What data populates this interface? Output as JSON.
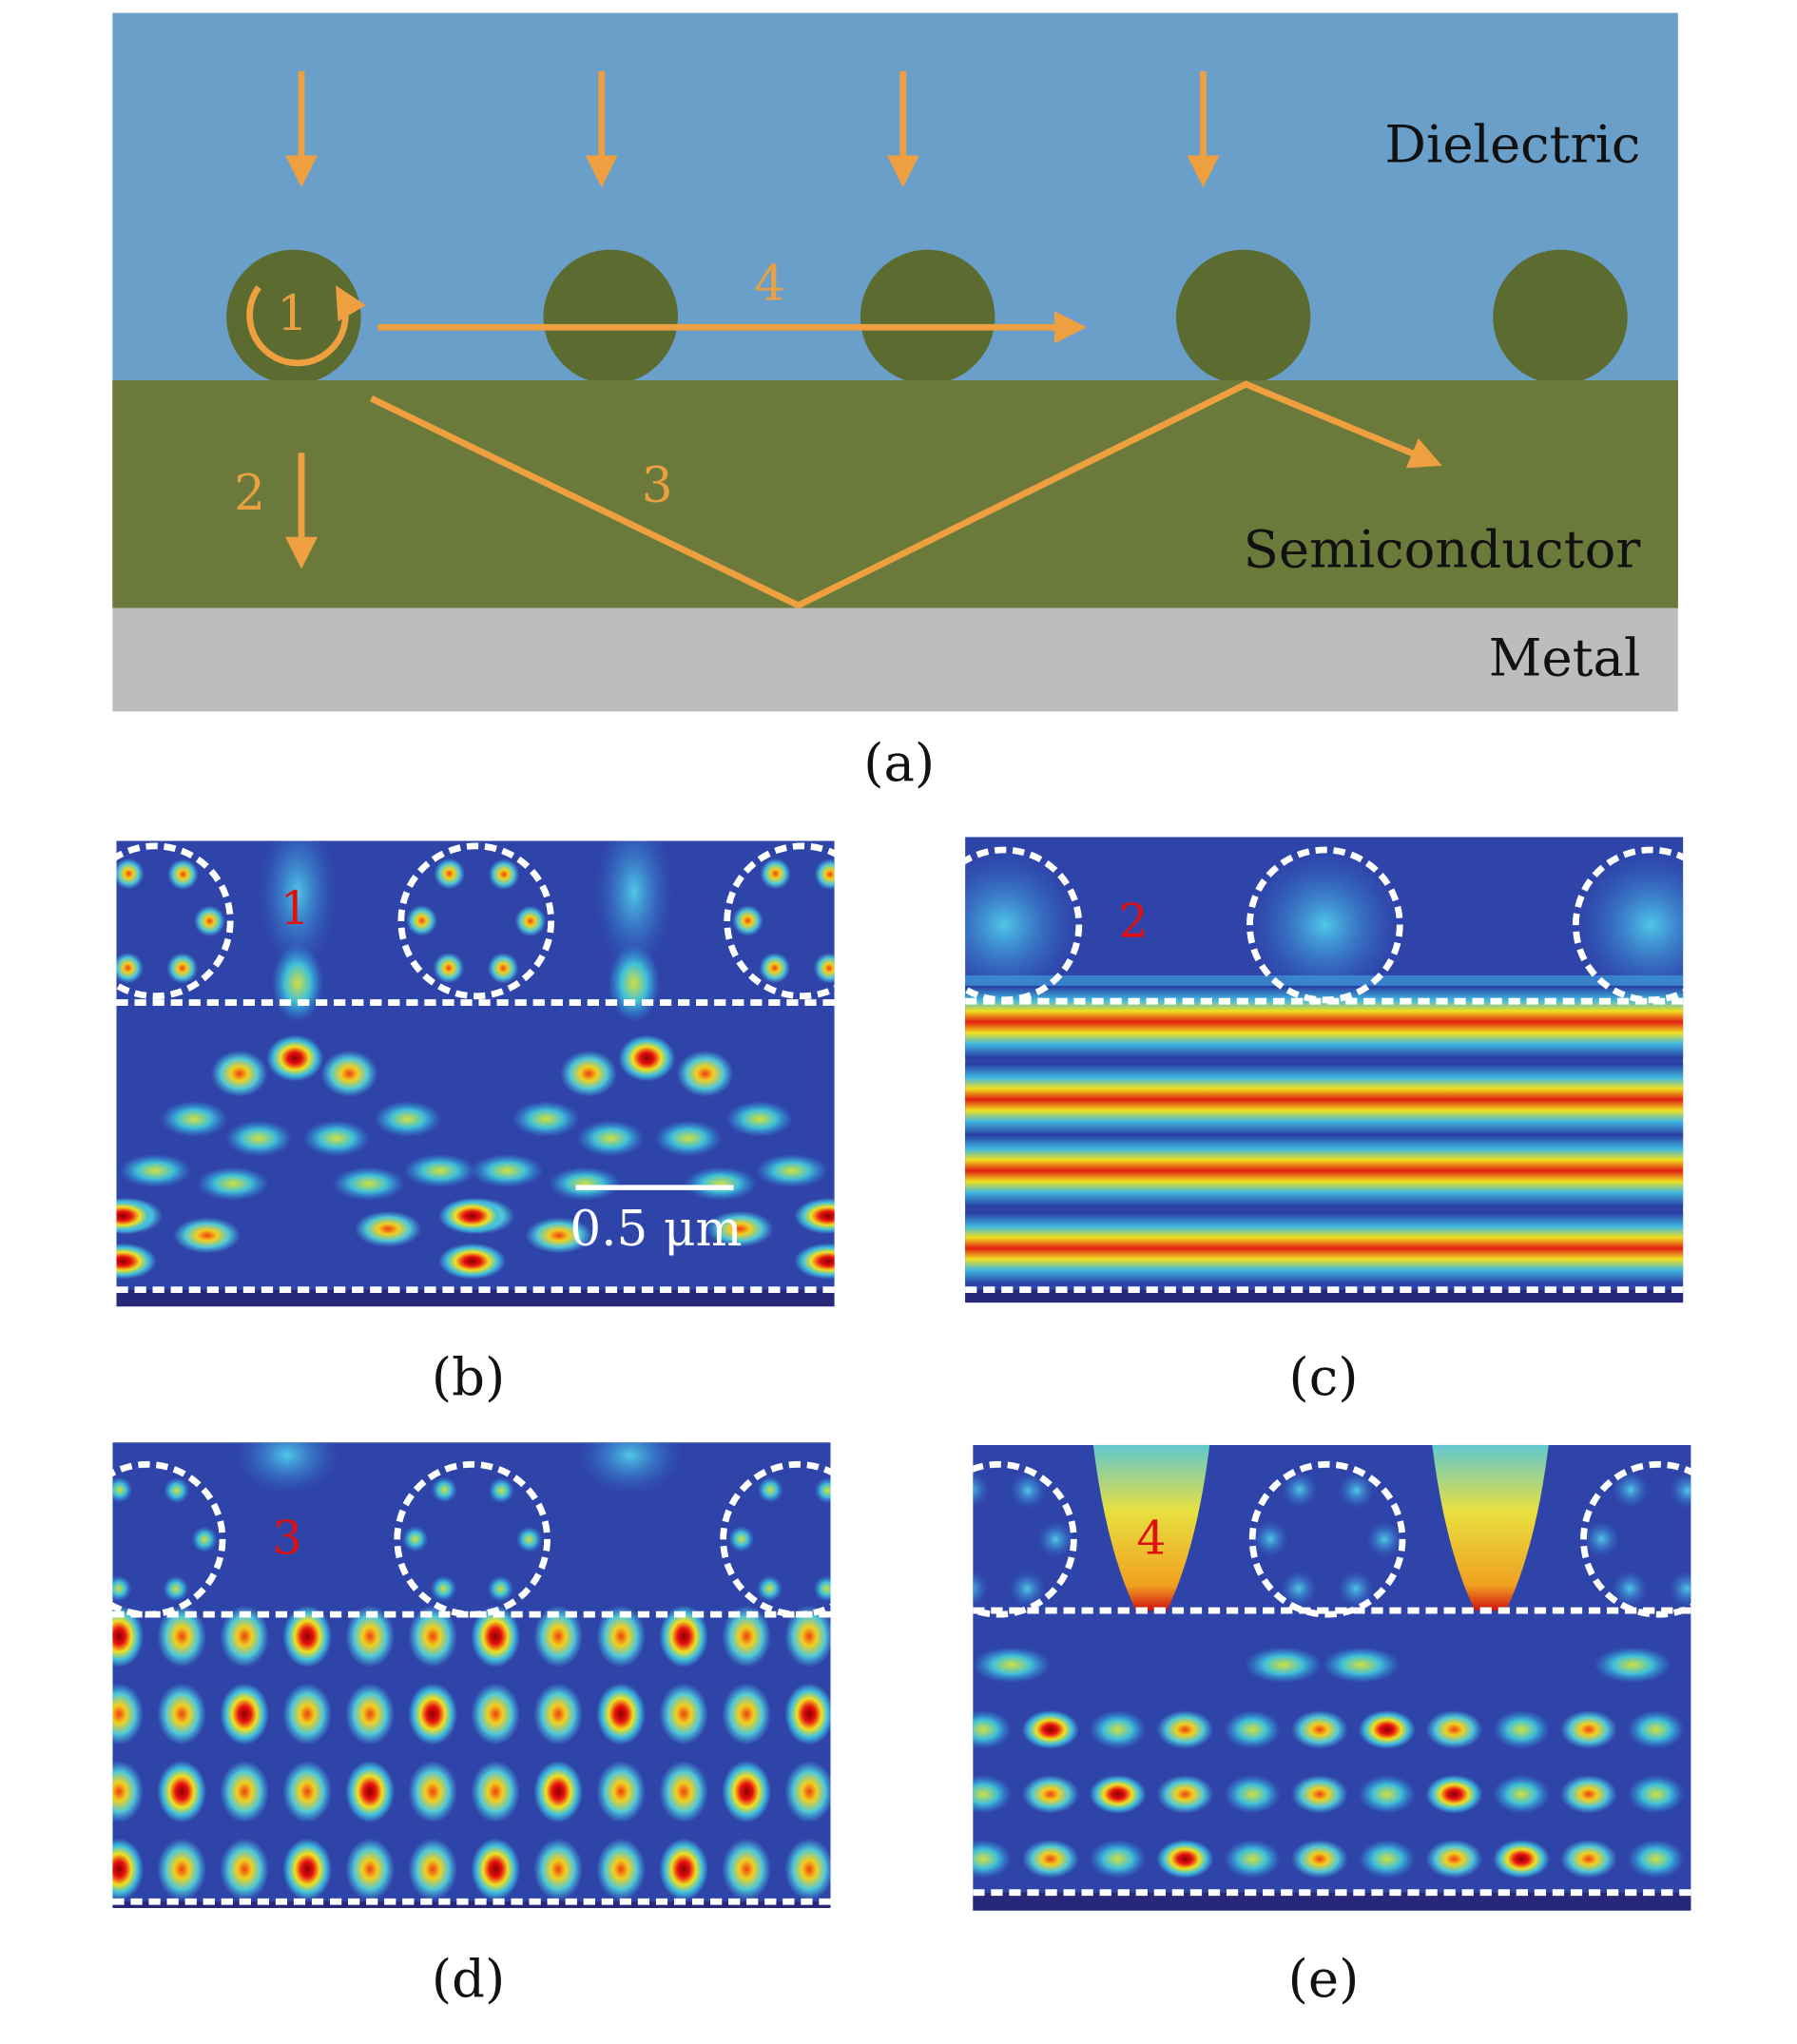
{
  "panel_a": {
    "caption": "(a)",
    "layers": [
      "Dielectric",
      "Semiconductor",
      "Metal"
    ],
    "path_labels": [
      "1",
      "2",
      "3",
      "4"
    ]
  },
  "field_maps": [
    {
      "caption": "(b)",
      "mode_label": "1",
      "scale_bar": "0.5 μm"
    },
    {
      "caption": "(c)",
      "mode_label": "2"
    },
    {
      "caption": "(d)",
      "mode_label": "3"
    },
    {
      "caption": "(e)",
      "mode_label": "4"
    }
  ]
}
